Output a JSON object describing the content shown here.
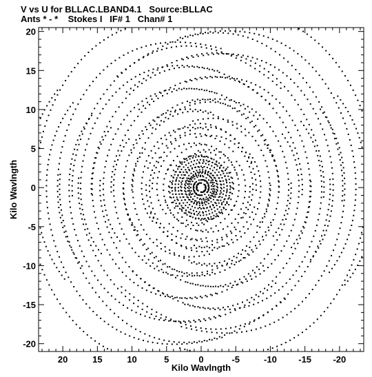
{
  "header": {
    "line1": "V vs U for BLLAC.LBAND4.1   Source:BLLAC",
    "line2": "Ants * - *    Stokes I   IF# 1   Chan# 1"
  },
  "chart_data": {
    "type": "scatter",
    "title": "V vs U for BLLAC.LBAND4.1   Source:BLLAC",
    "subtitle": "Ants * - *    Stokes I   IF# 1   Chan# 1",
    "xlabel": "Kilo Wavlngth",
    "ylabel": "Kilo Wavlngth",
    "xlim": [
      23.5,
      -23.5
    ],
    "ylim": [
      -21,
      20.5
    ],
    "x_ticks": [
      20,
      15,
      10,
      5,
      0,
      -5,
      -10,
      -15,
      -20
    ],
    "y_ticks": [
      20,
      15,
      10,
      5,
      0,
      -5,
      -10,
      -15,
      -20
    ],
    "x_tick_labels": [
      "20",
      "15",
      "10",
      "5",
      "0",
      "-5",
      "-10",
      "-15",
      "-20"
    ],
    "y_tick_labels": [
      "20",
      "15",
      "10",
      "5",
      "0",
      "-5",
      "-10",
      "-15",
      "-20"
    ],
    "grid": false,
    "marker_color": "#000000",
    "point_symmetry": "conjugate",
    "tracks": [
      {
        "baseline_u": 0.6,
        "baseline_v": 0.3
      },
      {
        "baseline_u": 1.0,
        "baseline_v": -0.5
      },
      {
        "baseline_u": 1.5,
        "baseline_v": 0.9
      },
      {
        "baseline_u": 2.0,
        "baseline_v": -1.1
      },
      {
        "baseline_u": 2.6,
        "baseline_v": 1.4
      },
      {
        "baseline_u": 3.3,
        "baseline_v": -1.8
      },
      {
        "baseline_u": 4.0,
        "baseline_v": 2.2
      },
      {
        "baseline_u": 4.8,
        "baseline_v": -2.6
      },
      {
        "baseline_u": 5.6,
        "baseline_v": 3.1
      },
      {
        "baseline_u": 6.5,
        "baseline_v": -3.7
      },
      {
        "baseline_u": 7.4,
        "baseline_v": 4.4
      },
      {
        "baseline_u": 8.5,
        "baseline_v": -5.1
      },
      {
        "baseline_u": 9.6,
        "baseline_v": 5.8
      },
      {
        "baseline_u": 10.8,
        "baseline_v": -6.6
      },
      {
        "baseline_u": 12.0,
        "baseline_v": 7.5
      },
      {
        "baseline_u": 13.4,
        "baseline_v": -8.3
      },
      {
        "baseline_u": 14.8,
        "baseline_v": 9.2
      },
      {
        "baseline_u": 16.2,
        "baseline_v": -10.1
      },
      {
        "baseline_u": 17.6,
        "baseline_v": 11.0
      },
      {
        "baseline_u": 19.0,
        "baseline_v": -11.8
      },
      {
        "baseline_u": 20.4,
        "baseline_v": 12.5
      },
      {
        "baseline_u": 21.6,
        "baseline_v": -13.1
      },
      {
        "baseline_u": 1.8,
        "baseline_v": 3.9
      },
      {
        "baseline_u": 3.0,
        "baseline_v": 6.4
      },
      {
        "baseline_u": 4.4,
        "baseline_v": 9.0
      },
      {
        "baseline_u": 5.9,
        "baseline_v": 11.6
      },
      {
        "baseline_u": 7.3,
        "baseline_v": 14.1
      },
      {
        "baseline_u": 8.7,
        "baseline_v": 16.5
      },
      {
        "baseline_u": -2.1,
        "baseline_v": 4.2
      },
      {
        "baseline_u": -3.6,
        "baseline_v": 7.1
      },
      {
        "baseline_u": -5.2,
        "baseline_v": 10.0
      },
      {
        "baseline_u": -6.9,
        "baseline_v": 12.9
      },
      {
        "baseline_u": -8.5,
        "baseline_v": 15.6
      },
      {
        "baseline_u": -10.1,
        "baseline_v": 17.8
      },
      {
        "baseline_u": 0.3,
        "baseline_v": 2.0
      },
      {
        "baseline_u": -0.4,
        "baseline_v": 5.5
      },
      {
        "baseline_u": 0.5,
        "baseline_v": 8.2
      },
      {
        "baseline_u": -0.6,
        "baseline_v": 11.3
      }
    ]
  }
}
